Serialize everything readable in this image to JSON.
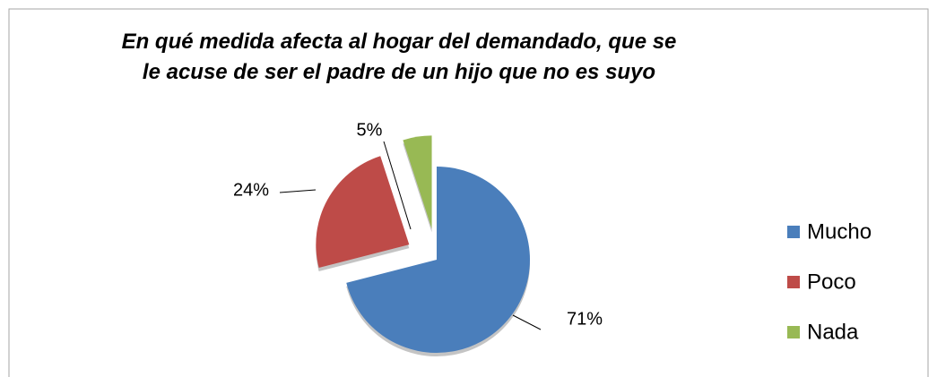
{
  "chart_data": {
    "type": "pie",
    "title": "En qué medida afecta al hogar del demandado, que se le acuse de ser el padre de un hijo que no es suyo",
    "categories": [
      "Mucho",
      "Poco",
      "Nada"
    ],
    "values": [
      71,
      24,
      5
    ],
    "value_labels": [
      "71%",
      "24%",
      "5%"
    ],
    "colors": [
      "#4a7ebb",
      "#be4b48",
      "#98b954"
    ],
    "exploded": [
      false,
      true,
      true
    ],
    "legend": "right"
  }
}
